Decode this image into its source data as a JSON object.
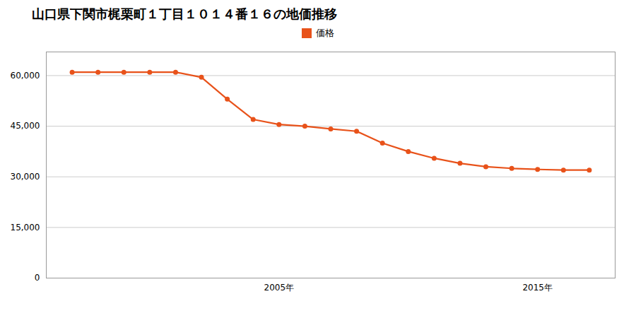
{
  "chart_data": {
    "type": "line",
    "title": "山口県下関市梶栗町１丁目１０１４番１６の地価推移",
    "x": [
      1997,
      1998,
      1999,
      2000,
      2001,
      2002,
      2003,
      2004,
      2005,
      2006,
      2007,
      2008,
      2009,
      2010,
      2011,
      2012,
      2013,
      2014,
      2015,
      2016,
      2017
    ],
    "series": [
      {
        "name": "価格",
        "color": "#e8521a",
        "marker": "circle",
        "values": [
          61000,
          61000,
          61000,
          61000,
          61000,
          59500,
          53000,
          47000,
          45500,
          45000,
          44200,
          43500,
          40000,
          37500,
          35500,
          34000,
          33000,
          32500,
          32200,
          32000,
          32000
        ]
      }
    ],
    "xlim": [
      1996,
      2018
    ],
    "xticks": [
      {
        "value": 2005,
        "label": "2005年"
      },
      {
        "value": 2015,
        "label": "2015年"
      }
    ],
    "ylim": [
      0,
      67000
    ],
    "yticks": [
      0,
      {
        "value": 15000,
        "label": "15,000"
      },
      {
        "value": 30000,
        "label": "30,000"
      },
      {
        "value": 45000,
        "label": "45,000"
      },
      {
        "value": 60000,
        "label": "60,000"
      }
    ],
    "grid": "y",
    "legend": "top"
  }
}
